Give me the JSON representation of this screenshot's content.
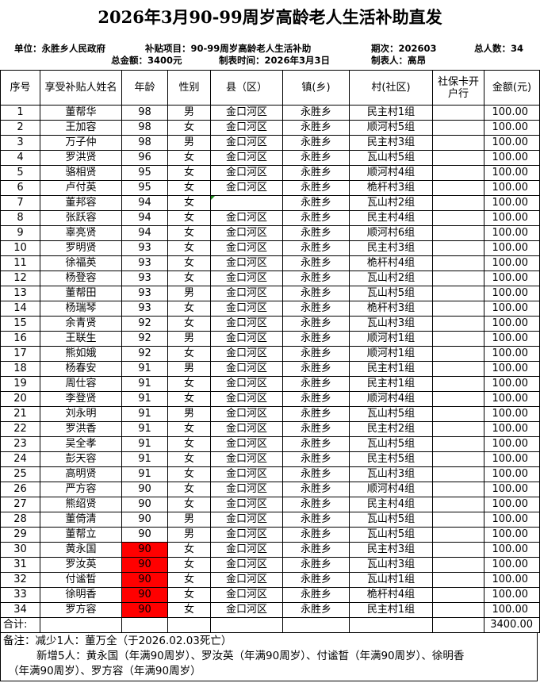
{
  "title": "2026年3月90-99周岁高龄老人生活补助直发",
  "info": {
    "unit": "单位：永胜乡人民政府",
    "project": "补贴项目：90-99周岁高龄老人生活补助",
    "period": "期次：202603",
    "total_people": "总人数：34",
    "total_amount": "总金额：3400元",
    "made_time": "制表时间：2026年3月3日",
    "maker": "制表人：高昂"
  },
  "headers": [
    "序号",
    "享受补贴人姓名",
    "年龄",
    "性别",
    "县（区）",
    "镇(乡)",
    "村(社区)",
    "社保卡开户行",
    "金额(元)"
  ],
  "rows": [
    [
      "1",
      "董帮华",
      "98",
      "男",
      "金口河区",
      "永胜乡",
      "民主村1组",
      "",
      "100.00"
    ],
    [
      "2",
      "王加容",
      "98",
      "女",
      "金口河区",
      "永胜乡",
      "顺河村5组",
      "",
      "100.00"
    ],
    [
      "3",
      "万子仲",
      "98",
      "男",
      "金口河区",
      "永胜乡",
      "民主村3组",
      "",
      "100.00"
    ],
    [
      "4",
      "罗洪贤",
      "96",
      "女",
      "金口河区",
      "永胜乡",
      "瓦山村5组",
      "",
      "100.00"
    ],
    [
      "5",
      "骆相贤",
      "95",
      "女",
      "金口河区",
      "永胜乡",
      "顺河村4组",
      "",
      "100.00"
    ],
    [
      "6",
      "卢付英",
      "95",
      "女",
      "金口河区",
      "永胜乡",
      "桅杆村3组",
      "",
      "100.00"
    ],
    [
      "7",
      "董邦容",
      "94",
      "女",
      "",
      "永胜乡",
      "瓦山村2组",
      "",
      "100.00"
    ],
    [
      "8",
      "张跃容",
      "94",
      "女",
      "金口河区",
      "永胜乡",
      "民主村4组",
      "",
      "100.00"
    ],
    [
      "9",
      "辜亮贤",
      "94",
      "女",
      "金口河区",
      "永胜乡",
      "顺河村6组",
      "",
      "100.00"
    ],
    [
      "10",
      "罗明贤",
      "93",
      "女",
      "金口河区",
      "永胜乡",
      "民主村3组",
      "",
      "100.00"
    ],
    [
      "11",
      "徐福英",
      "93",
      "女",
      "金口河区",
      "永胜乡",
      "桅杆村4组",
      "",
      "100.00"
    ],
    [
      "12",
      "杨登容",
      "93",
      "女",
      "金口河区",
      "永胜乡",
      "瓦山村2组",
      "",
      "100.00"
    ],
    [
      "13",
      "董帮田",
      "93",
      "男",
      "金口河区",
      "永胜乡",
      "瓦山村5组",
      "",
      "100.00"
    ],
    [
      "14",
      "杨瑞琴",
      "93",
      "女",
      "金口河区",
      "永胜乡",
      "桅杆村3组",
      "",
      "100.00"
    ],
    [
      "15",
      "余青贤",
      "92",
      "女",
      "金口河区",
      "永胜乡",
      "瓦山村3组",
      "",
      "100.00"
    ],
    [
      "16",
      "王联生",
      "92",
      "男",
      "金口河区",
      "永胜乡",
      "顺河村1组",
      "",
      "100.00"
    ],
    [
      "17",
      "熊如娥",
      "92",
      "女",
      "金口河区",
      "永胜乡",
      "顺河村1组",
      "",
      "100.00"
    ],
    [
      "18",
      "杨春安",
      "91",
      "男",
      "金口河区",
      "永胜乡",
      "民主村1组",
      "",
      "100.00"
    ],
    [
      "19",
      "周仕容",
      "91",
      "女",
      "金口河区",
      "永胜乡",
      "民主村1组",
      "",
      "100.00"
    ],
    [
      "20",
      "李登贤",
      "91",
      "女",
      "金口河区",
      "永胜乡",
      "顺河村4组",
      "",
      "100.00"
    ],
    [
      "21",
      "刘永明",
      "91",
      "男",
      "金口河区",
      "永胜乡",
      "瓦山村5组",
      "",
      "100.00"
    ],
    [
      "22",
      "罗洪香",
      "91",
      "女",
      "金口河区",
      "永胜乡",
      "民主村2组",
      "",
      "100.00"
    ],
    [
      "23",
      "吴全孝",
      "91",
      "女",
      "金口河区",
      "永胜乡",
      "瓦山村5组",
      "",
      "100.00"
    ],
    [
      "24",
      "彭天容",
      "91",
      "女",
      "金口河区",
      "永胜乡",
      "民主村5组",
      "",
      "100.00"
    ],
    [
      "25",
      "高明贤",
      "91",
      "女",
      "金口河区",
      "永胜乡",
      "瓦山村3组",
      "",
      "100.00"
    ],
    [
      "26",
      "严方容",
      "90",
      "女",
      "金口河区",
      "永胜乡",
      "顺河村4组",
      "",
      "100.00"
    ],
    [
      "27",
      "熊绍贤",
      "90",
      "女",
      "金口河区",
      "永胜乡",
      "民主村4组",
      "",
      "100.00"
    ],
    [
      "28",
      "董倚清",
      "90",
      "男",
      "金口河区",
      "永胜乡",
      "瓦山村5组",
      "",
      "100.00"
    ],
    [
      "29",
      "董帮立",
      "90",
      "男",
      "金口河区",
      "永胜乡",
      "瓦山村5组",
      "",
      "100.00"
    ],
    [
      "30",
      "黄永国",
      "90",
      "女",
      "金口河区",
      "永胜乡",
      "民主村3组",
      "",
      "100.00"
    ],
    [
      "31",
      "罗汝英",
      "90",
      "女",
      "金口河区",
      "永胜乡",
      "瓦山村3组",
      "",
      "100.00"
    ],
    [
      "32",
      "付谧晳",
      "90",
      "女",
      "金口河区",
      "永胜乡",
      "瓦山村1组",
      "",
      "100.00"
    ],
    [
      "33",
      "徐明香",
      "90",
      "女",
      "金口河区",
      "永胜乡",
      "桅杆村4组",
      "",
      "100.00"
    ],
    [
      "34",
      "罗方容",
      "90",
      "女",
      "金口河区",
      "永胜乡",
      "民主村1组",
      "",
      "100.00"
    ]
  ],
  "highlighted_rows": [
    "30",
    "31",
    "32",
    "33",
    "34"
  ],
  "highlight_color": "#ff0000",
  "total": {
    "label": "合计:",
    "amount": "3400.00"
  },
  "notes": {
    "line1": "备注：减少1人：董万全（于2026.02.03死亡）",
    "line2": "新增5人：黄永国（年满90周岁）、罗汝英（年满90周岁）、付谧晳（年满90周岁）、徐明香",
    "line3": "（年满90周岁）、罗方容（年满90周岁）"
  }
}
